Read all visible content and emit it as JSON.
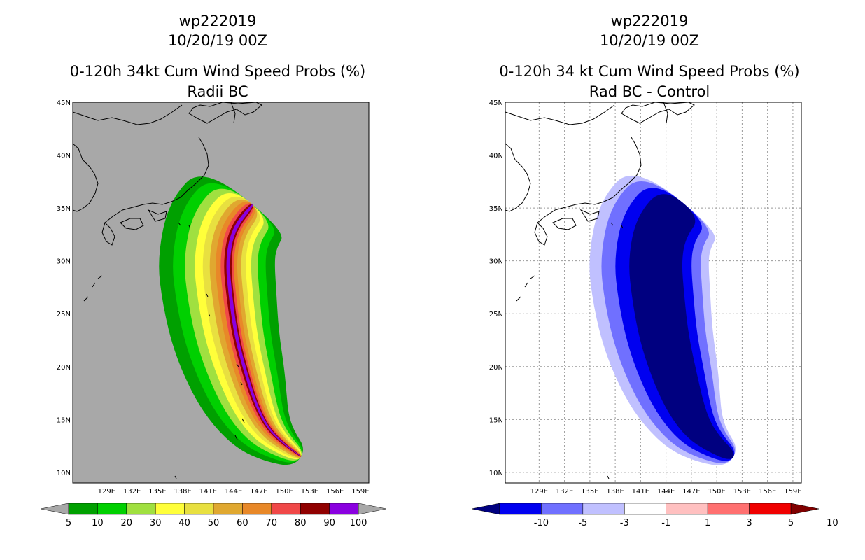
{
  "colors": {
    "land_bg": "#a8a8a8",
    "prob": [
      "#00a000",
      "#00d000",
      "#a0e040",
      "#ffff3a",
      "#e8e040",
      "#e0a830",
      "#e88828",
      "#f04848",
      "#900000",
      "#8a00e0"
    ],
    "diff": [
      "#000080",
      "#0000f0",
      "#7070ff",
      "#c0c0ff",
      "#ffffff",
      "#ffc0c0",
      "#ff7070",
      "#f00000",
      "#800000"
    ]
  },
  "chart_data": [
    {
      "type": "heatmap",
      "panel": "left",
      "title_line1": "wp222019",
      "title_line2": "10/20/19 00Z",
      "title_line3": "0-120h 34kt Cum Wind Speed Probs (%)",
      "title_line4": "Radii BC",
      "xlabel": "",
      "ylabel": "",
      "xlim": [
        125,
        160
      ],
      "ylim": [
        9,
        45
      ],
      "x_ticks": [
        "129E",
        "132E",
        "135E",
        "138E",
        "141E",
        "144E",
        "147E",
        "150E",
        "153E",
        "156E",
        "159E"
      ],
      "y_ticks": [
        "10N",
        "15N",
        "20N",
        "25N",
        "30N",
        "35N",
        "40N",
        "45N"
      ],
      "colorbar_labels": [
        "5",
        "10",
        "20",
        "30",
        "40",
        "50",
        "60",
        "70",
        "80",
        "90",
        "100"
      ],
      "legend_position": "bottom",
      "grid": false,
      "track_points_lon_lat": [
        [
          151.5,
          11.5
        ],
        [
          149.3,
          12.8
        ],
        [
          147.6,
          14.2
        ],
        [
          146.3,
          16.2
        ],
        [
          145.2,
          18.8
        ],
        [
          143.9,
          22.6
        ],
        [
          143.2,
          26.5
        ],
        [
          142.8,
          30.0
        ],
        [
          143.5,
          33.0
        ],
        [
          145.8,
          35.3
        ]
      ],
      "contour_levels_pct": [
        5,
        10,
        20,
        30,
        40,
        50,
        60,
        70,
        80,
        90,
        100
      ],
      "max_region_pct": 100
    },
    {
      "type": "heatmap",
      "panel": "right",
      "title_line1": "wp222019",
      "title_line2": "10/20/19 00Z",
      "title_line3": "0-120h 34 kt Cum Wind Speed Probs (%)",
      "title_line4": "Rad BC - Control",
      "xlabel": "",
      "ylabel": "",
      "xlim": [
        125,
        160
      ],
      "ylim": [
        9,
        45
      ],
      "x_ticks": [
        "129E",
        "132E",
        "135E",
        "138E",
        "141E",
        "144E",
        "147E",
        "150E",
        "153E",
        "156E",
        "159E"
      ],
      "y_ticks": [
        "10N",
        "15N",
        "20N",
        "25N",
        "30N",
        "35N",
        "40N",
        "45N"
      ],
      "colorbar_labels": [
        "-10",
        "-5",
        "-3",
        "-1",
        "1",
        "3",
        "5",
        "10"
      ],
      "legend_position": "bottom",
      "grid": true,
      "contour_levels_diff": [
        -10,
        -5,
        -3,
        -1,
        1,
        3,
        5,
        10
      ],
      "min_region_diff": -10
    }
  ]
}
